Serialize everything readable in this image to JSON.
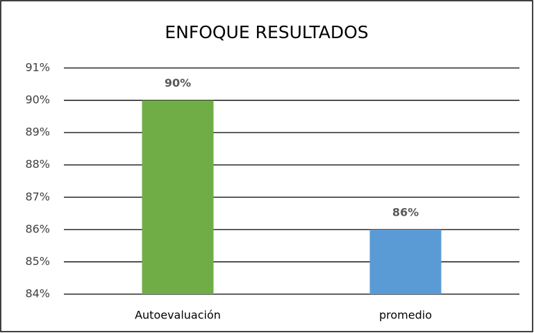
{
  "chart_data": {
    "type": "bar",
    "title": "ENFOQUE RESULTADOS",
    "categories": [
      "Autoevaluación",
      "promedio"
    ],
    "values": [
      90,
      86
    ],
    "value_labels": [
      "90%",
      "86%"
    ],
    "colors": [
      "#70ad47",
      "#5b9bd5"
    ],
    "ylim": [
      84,
      91
    ],
    "yticks": [
      {
        "value": 84,
        "label": "84%"
      },
      {
        "value": 85,
        "label": "85%"
      },
      {
        "value": 86,
        "label": "86%"
      },
      {
        "value": 87,
        "label": "87%"
      },
      {
        "value": 88,
        "label": "88%"
      },
      {
        "value": 89,
        "label": "89%"
      },
      {
        "value": 90,
        "label": "90%"
      },
      {
        "value": 91,
        "label": "91%"
      }
    ],
    "grid": true
  }
}
